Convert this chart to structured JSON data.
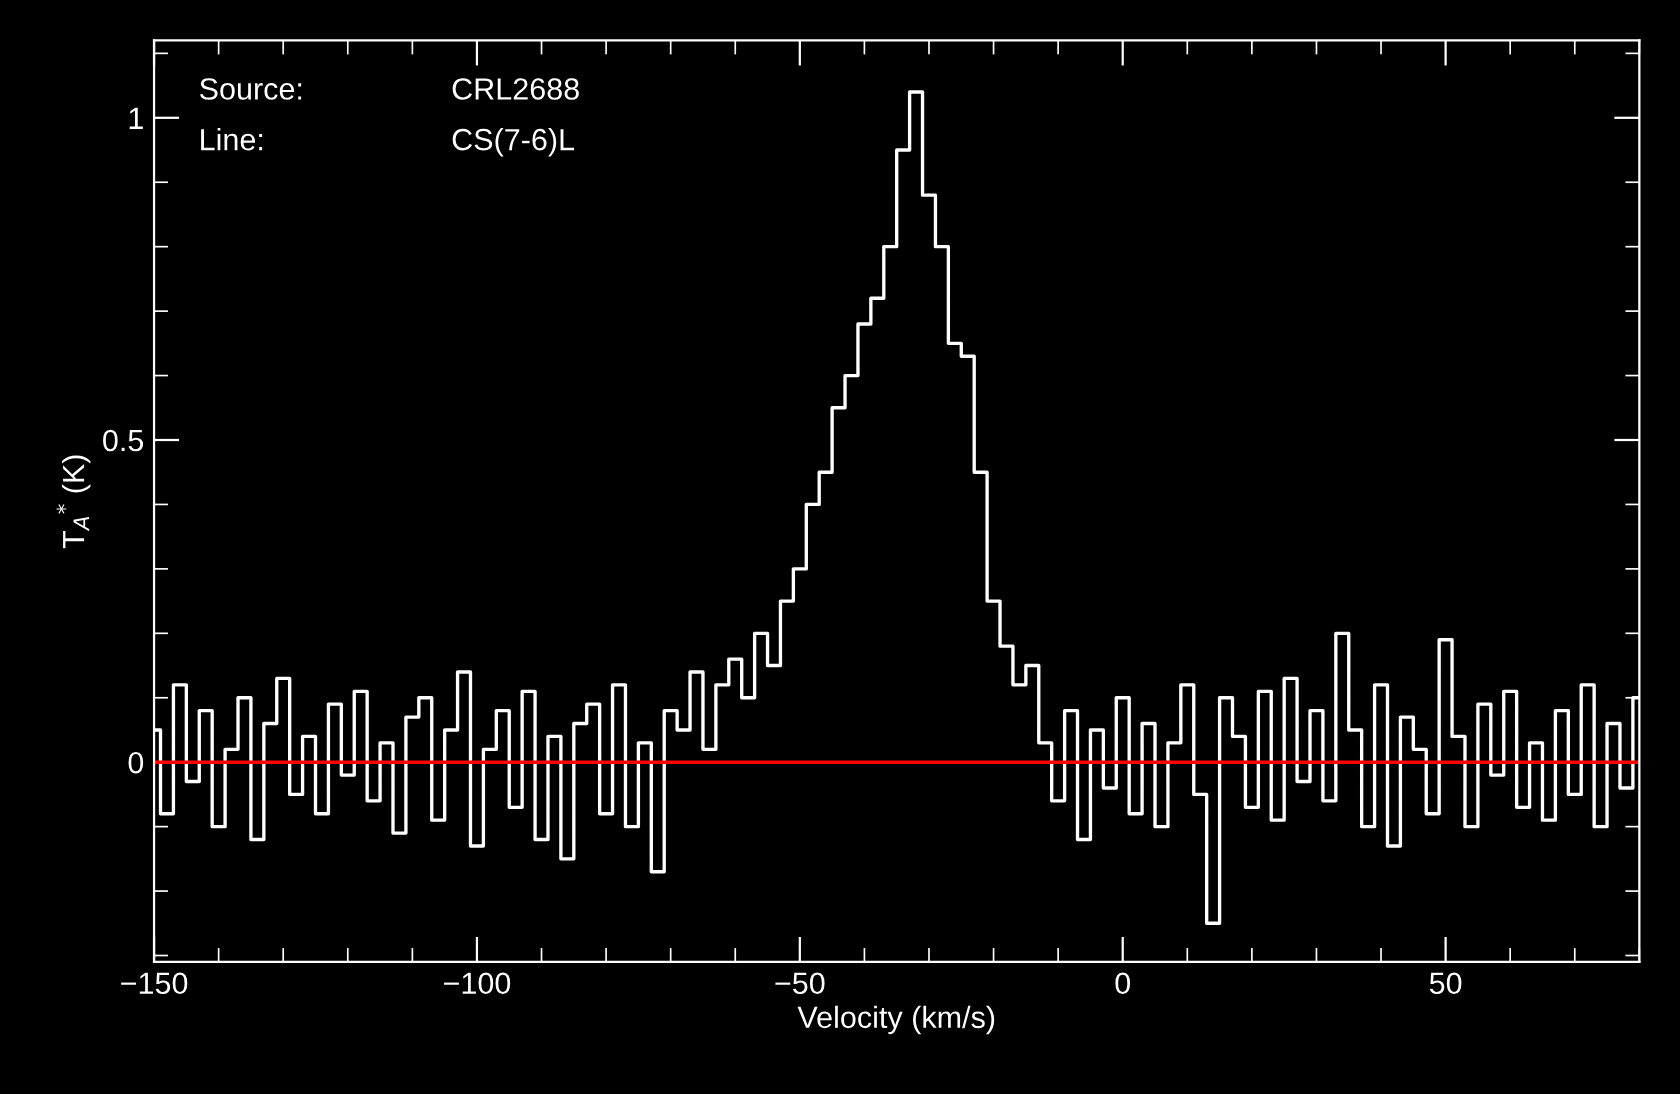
{
  "chart_data": {
    "type": "step",
    "xlabel": "Velocity (km/s)",
    "ylabel": "T$_{A}$$^{*}$ (K)",
    "annotations": [
      "Source:",
      "CRL2688",
      "Line:",
      "CS(7-6)L"
    ],
    "xlim": [
      -150,
      80
    ],
    "xticks": [
      -150,
      -100,
      -50,
      0,
      50
    ],
    "ylim": [
      -0.31,
      1.12
    ],
    "yticks": [
      0,
      0.5,
      1
    ],
    "ref_lines": [
      {
        "axis": "y",
        "value": 0,
        "color": "#ff0000"
      }
    ],
    "series": [
      {
        "color": "#ffffff",
        "x": [
          -150,
          -148,
          -146,
          -144,
          -142,
          -140,
          -138,
          -136,
          -134,
          -132,
          -130,
          -128,
          -126,
          -124,
          -122,
          -120,
          -118,
          -116,
          -114,
          -112,
          -110,
          -108,
          -106,
          -104,
          -102,
          -100,
          -98,
          -96,
          -94,
          -92,
          -90,
          -88,
          -86,
          -84,
          -82,
          -80,
          -78,
          -76,
          -74,
          -72,
          -70,
          -68,
          -66,
          -64,
          -62,
          -60,
          -58,
          -56,
          -54,
          -52,
          -50,
          -48,
          -46,
          -44,
          -42,
          -40,
          -38,
          -36,
          -34,
          -32,
          -30,
          -28,
          -26,
          -24,
          -22,
          -20,
          -18,
          -16,
          -14,
          -12,
          -10,
          -8,
          -6,
          -4,
          -2,
          0,
          2,
          4,
          6,
          8,
          10,
          12,
          14,
          16,
          18,
          20,
          22,
          24,
          26,
          28,
          30,
          32,
          34,
          36,
          38,
          40,
          42,
          44,
          46,
          48,
          50,
          52,
          54,
          56,
          58,
          60,
          62,
          64,
          66,
          68,
          70,
          72,
          74,
          76,
          78,
          80
        ],
        "values": [
          0.05,
          -0.08,
          0.12,
          -0.03,
          0.08,
          -0.1,
          0.02,
          0.1,
          -0.12,
          0.06,
          0.13,
          -0.05,
          0.04,
          -0.08,
          0.09,
          -0.02,
          0.11,
          -0.06,
          0.03,
          -0.11,
          0.07,
          0.1,
          -0.09,
          0.05,
          0.14,
          -0.13,
          0.02,
          0.08,
          -0.07,
          0.11,
          -0.12,
          0.04,
          -0.15,
          0.06,
          0.09,
          -0.08,
          0.12,
          -0.1,
          0.03,
          -0.17,
          0.08,
          0.05,
          0.14,
          0.02,
          0.12,
          0.16,
          0.1,
          0.2,
          0.15,
          0.25,
          0.3,
          0.4,
          0.45,
          0.55,
          0.6,
          0.68,
          0.72,
          0.8,
          0.95,
          1.04,
          0.88,
          0.8,
          0.65,
          0.63,
          0.45,
          0.25,
          0.18,
          0.12,
          0.15,
          0.03,
          -0.06,
          0.08,
          -0.12,
          0.05,
          -0.04,
          0.1,
          -0.08,
          0.06,
          -0.1,
          0.03,
          0.12,
          -0.05,
          -0.25,
          0.1,
          0.04,
          -0.07,
          0.11,
          -0.09,
          0.13,
          -0.03,
          0.08,
          -0.06,
          0.2,
          0.05,
          -0.1,
          0.12,
          -0.13,
          0.07,
          0.02,
          -0.08,
          0.19,
          0.04,
          -0.1,
          0.09,
          -0.02,
          0.11,
          -0.07,
          0.03,
          -0.09,
          0.08,
          -0.05,
          0.12,
          -0.1,
          0.06,
          -0.04,
          0.1
        ]
      }
    ]
  }
}
